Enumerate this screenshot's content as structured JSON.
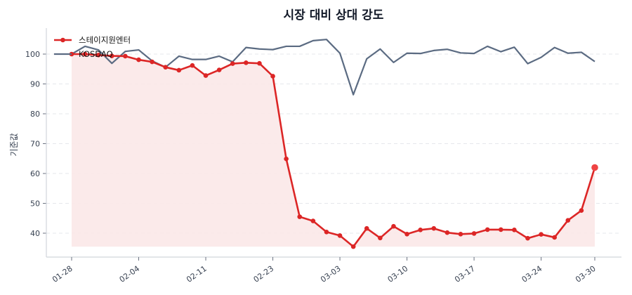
{
  "chart_data": {
    "type": "line",
    "title": "시장 대비 상대 강도",
    "xlabel": "",
    "ylabel": "기준값",
    "ylim": [
      32.5,
      108.5
    ],
    "yticks": [
      40,
      50,
      60,
      70,
      80,
      90,
      100
    ],
    "grid": {
      "y": true,
      "x": false,
      "style": "dashed"
    },
    "legend_position": "upper left",
    "xtick_labels": [
      "01-28",
      "02-04",
      "02-11",
      "02-23",
      "03-03",
      "03-10",
      "03-17",
      "03-24",
      "03-30"
    ],
    "xtick_indices": [
      0,
      5,
      10,
      15,
      20,
      25,
      30,
      35,
      39
    ],
    "series": [
      {
        "name": "스테이지원엔터",
        "color": "#dc2626",
        "markers": true,
        "fill": true,
        "fill_color": "#fbe8e8",
        "highlight_last": true,
        "values": [
          100.0,
          100.0,
          99.7,
          99.4,
          99.3,
          98.1,
          97.4,
          95.6,
          94.6,
          96.2,
          92.8,
          94.7,
          96.8,
          97.1,
          96.9,
          92.6,
          64.9,
          45.5,
          44.1,
          40.4,
          39.2,
          35.5,
          41.6,
          38.4,
          42.3,
          39.7,
          41.1,
          41.6,
          40.2,
          39.7,
          39.9,
          41.2,
          41.2,
          41.1,
          38.3,
          39.6,
          38.6,
          44.3,
          47.6,
          62.0
        ]
      },
      {
        "name": "KOSDAQ",
        "color": "#5b6b82",
        "markers": false,
        "fill": false,
        "values": [
          100.0,
          102.6,
          101.4,
          96.9,
          100.9,
          101.4,
          97.7,
          95.6,
          99.3,
          98.2,
          98.2,
          99.3,
          97.4,
          102.2,
          101.7,
          101.5,
          102.6,
          102.6,
          104.5,
          104.9,
          100.3,
          86.4,
          98.4,
          101.7,
          97.2,
          100.3,
          100.2,
          101.2,
          101.6,
          100.4,
          100.2,
          102.6,
          100.8,
          102.3,
          96.8,
          98.9,
          102.2,
          100.3,
          100.6,
          97.5
        ]
      }
    ]
  }
}
